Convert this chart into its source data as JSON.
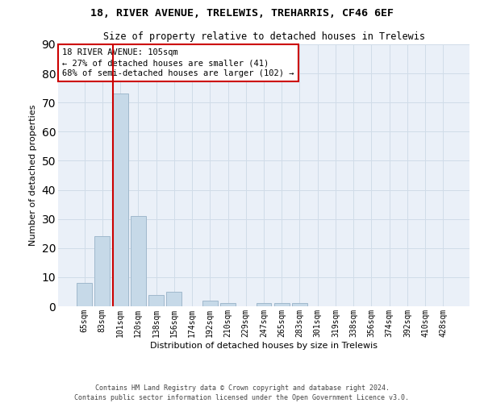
{
  "title1": "18, RIVER AVENUE, TRELEWIS, TREHARRIS, CF46 6EF",
  "title2": "Size of property relative to detached houses in Trelewis",
  "xlabel": "Distribution of detached houses by size in Trelewis",
  "ylabel": "Number of detached properties",
  "bar_labels": [
    "65sqm",
    "83sqm",
    "101sqm",
    "120sqm",
    "138sqm",
    "156sqm",
    "174sqm",
    "192sqm",
    "210sqm",
    "229sqm",
    "247sqm",
    "265sqm",
    "283sqm",
    "301sqm",
    "319sqm",
    "338sqm",
    "356sqm",
    "374sqm",
    "392sqm",
    "410sqm",
    "428sqm"
  ],
  "bar_values": [
    8,
    24,
    73,
    31,
    4,
    5,
    0,
    2,
    1,
    0,
    1,
    1,
    1,
    0,
    0,
    0,
    0,
    0,
    0,
    0,
    0
  ],
  "bar_color": "#c6d9e8",
  "bar_edge_color": "#a0b8cc",
  "vline_color": "#cc0000",
  "annotation_text": "18 RIVER AVENUE: 105sqm\n← 27% of detached houses are smaller (41)\n68% of semi-detached houses are larger (102) →",
  "annotation_box_color": "#ffffff",
  "annotation_box_edge": "#cc0000",
  "ylim": [
    0,
    90
  ],
  "yticks": [
    0,
    10,
    20,
    30,
    40,
    50,
    60,
    70,
    80,
    90
  ],
  "grid_color": "#d0dce8",
  "background_color": "#eaf0f8",
  "footer": "Contains HM Land Registry data © Crown copyright and database right 2024.\nContains public sector information licensed under the Open Government Licence v3.0.",
  "title1_fontsize": 9.5,
  "title2_fontsize": 8.5,
  "xlabel_fontsize": 8,
  "ylabel_fontsize": 8,
  "tick_fontsize": 7,
  "annotation_fontsize": 7.5,
  "footer_fontsize": 6
}
